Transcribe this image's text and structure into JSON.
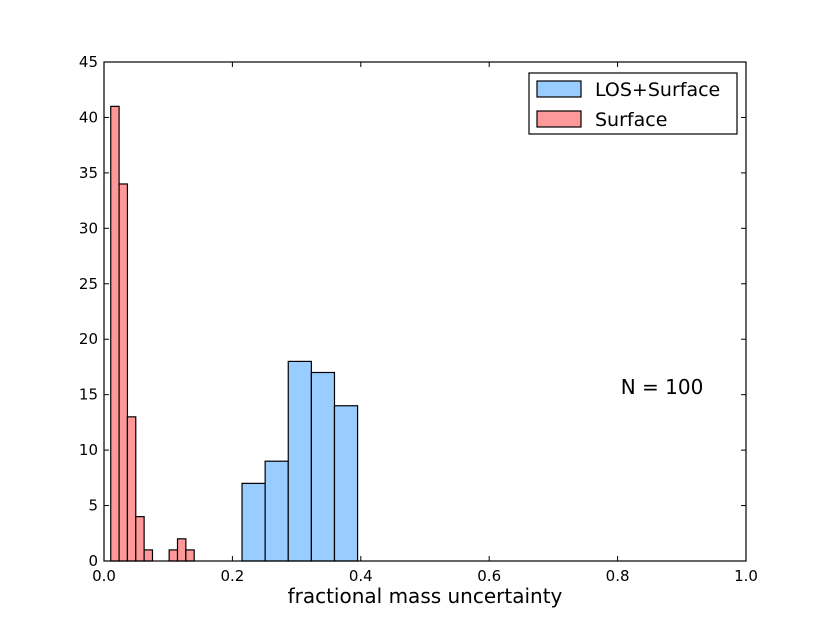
{
  "chart_data": {
    "type": "bar",
    "title": "",
    "xlabel": "fractional mass uncertainty",
    "ylabel": "",
    "xlim": [
      0.0,
      1.0
    ],
    "ylim": [
      0,
      45
    ],
    "xticks": [
      "0.0",
      "0.2",
      "0.4",
      "0.6",
      "0.8",
      "1.0"
    ],
    "yticks": [
      "0",
      "5",
      "10",
      "15",
      "20",
      "25",
      "30",
      "35",
      "40",
      "45"
    ],
    "grid": false,
    "legend_position": "top-right",
    "annotation": "N = 100",
    "series": [
      {
        "name": "LOS+Surface",
        "color": "#99ccff",
        "bin_edges": [
          0.215,
          0.251,
          0.287,
          0.323,
          0.359,
          0.395
        ],
        "counts": [
          7,
          9,
          18,
          17,
          14
        ]
      },
      {
        "name": "Surface",
        "color": "#ff9999",
        "bin_edges": [
          0.0105,
          0.0235,
          0.0365,
          0.0495,
          0.0625,
          0.0755,
          0.0885,
          0.1015,
          0.1145,
          0.1275,
          0.1405
        ],
        "counts": [
          41,
          34,
          13,
          4,
          1,
          0,
          0,
          1,
          2,
          1
        ]
      }
    ]
  }
}
